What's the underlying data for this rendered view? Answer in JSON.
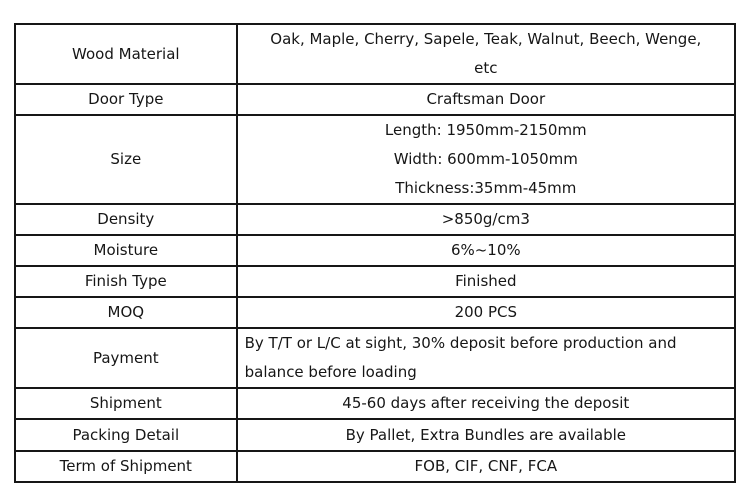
{
  "table": {
    "rows": [
      {
        "label": "Wood Material",
        "value_lines": [
          "Oak, Maple, Cherry, Sapele, Teak, Walnut, Beech, Wenge,",
          "etc"
        ]
      },
      {
        "label": "Door Type",
        "value_lines": [
          "Craftsman Door"
        ]
      },
      {
        "label": "Size",
        "value_lines": [
          "Length: 1950mm-2150mm",
          "Width: 600mm-1050mm",
          "Thickness:35mm-45mm"
        ]
      },
      {
        "label": "Density",
        "value_lines": [
          ">850g/cm3"
        ]
      },
      {
        "label": "Moisture",
        "value_lines": [
          "6%~10%"
        ]
      },
      {
        "label": "Finish Type",
        "value_lines": [
          "Finished"
        ]
      },
      {
        "label": "MOQ",
        "value_lines": [
          "200 PCS"
        ]
      },
      {
        "label": "Payment",
        "value_lines": [
          "By T/T or L/C at sight, 30% deposit before production and",
          "balance before loading"
        ]
      },
      {
        "label": "Shipment",
        "value_lines": [
          "45-60 days after receiving the deposit"
        ]
      },
      {
        "label": "Packing Detail",
        "value_lines": [
          "By Pallet, Extra Bundles are available"
        ]
      },
      {
        "label": "Term of Shipment",
        "value_lines": [
          "FOB, CIF, CNF, FCA"
        ]
      }
    ],
    "colors": {
      "border": "#161616",
      "text": "#161616",
      "background": "#ffffff"
    }
  }
}
